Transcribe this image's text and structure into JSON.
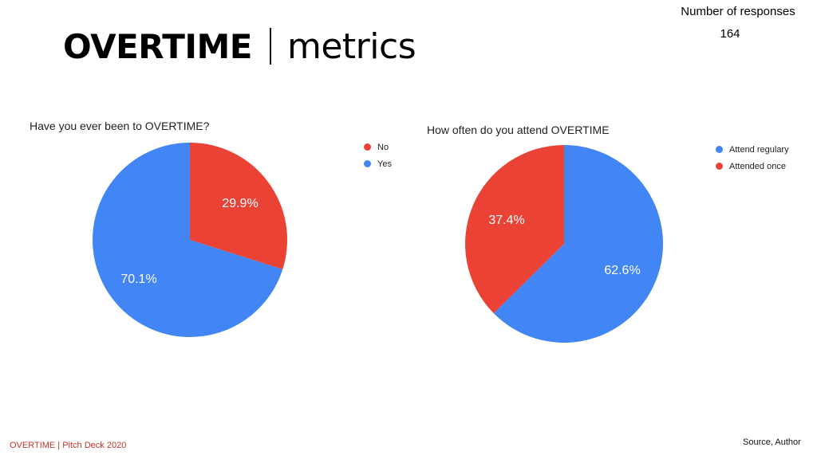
{
  "header": {
    "title_strong": "OVERTIME",
    "title_light": "metrics",
    "responses_label": "Number of responses",
    "responses_count": "164"
  },
  "colors": {
    "blue": "#4285F4",
    "red": "#EA4335",
    "footer_accent": "#C0392B"
  },
  "chart_data": [
    {
      "type": "pie",
      "title": "Have you ever been to OVERTIME?",
      "categories": [
        "No",
        "Yes"
      ],
      "values": [
        29.9,
        70.1
      ],
      "labels": [
        "29.9%",
        "70.1%"
      ],
      "colors": [
        "#EA4335",
        "#4285F4"
      ],
      "legend_position": "right"
    },
    {
      "type": "pie",
      "title": "How often do you attend OVERTIME",
      "categories": [
        "Attend regulary",
        "Attended once"
      ],
      "values": [
        62.6,
        37.4
      ],
      "labels": [
        "62.6%",
        "37.4%"
      ],
      "colors": [
        "#4285F4",
        "#EA4335"
      ],
      "legend_position": "right"
    }
  ],
  "footer": {
    "left": "OVERTIME |  Pitch Deck 2020",
    "right": "Source, Author"
  }
}
